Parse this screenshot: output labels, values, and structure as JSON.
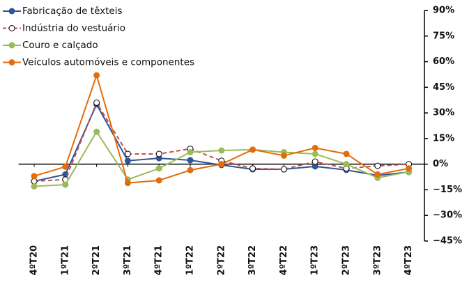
{
  "chart_data": {
    "type": "line",
    "categories": [
      "4ºT20",
      "1ºT21",
      "2ºT21",
      "3ºT21",
      "4ºT21",
      "1ºT22",
      "2ºT22",
      "3ºT22",
      "4ºT22",
      "1ºT23",
      "2ºT23",
      "3ºT23",
      "4ºT23"
    ],
    "series": [
      {
        "name": "Fabricação de têxteis",
        "color": "#2f5597",
        "values": [
          -10,
          -6,
          35,
          2,
          3.5,
          2.3,
          -0.5,
          -3,
          -3,
          -1.3,
          -3.4,
          -6.6,
          -4.6
        ]
      },
      {
        "name": "Indústria do vestuário",
        "color": "#c0504d",
        "values": [
          -10,
          -9,
          36,
          6,
          6,
          9,
          2,
          -2.5,
          -3,
          1.5,
          -2.5,
          -1,
          0
        ]
      },
      {
        "name": "Couro e calçado",
        "color": "#9bbb59",
        "values": [
          -13,
          -12,
          19,
          -9,
          -2.5,
          7,
          8,
          8.5,
          7,
          6,
          0,
          -8,
          -4.5
        ]
      },
      {
        "name": "Veículos automóveis e componentes",
        "color": "#e46c0a",
        "values": [
          -7,
          -1.5,
          52,
          -11,
          -9.5,
          -3.5,
          0,
          8.5,
          5,
          9.5,
          6,
          -6,
          -2.5
        ]
      }
    ],
    "ylim": [
      -45,
      90
    ],
    "yticks": [
      {
        "value": 90,
        "label": "90%"
      },
      {
        "value": 75,
        "label": "75%"
      },
      {
        "value": 60,
        "label": "60%"
      },
      {
        "value": 45,
        "label": "45%"
      },
      {
        "value": 30,
        "label": "30%"
      },
      {
        "value": 15,
        "label": "15%"
      },
      {
        "value": 0,
        "label": "0%"
      },
      {
        "value": -15,
        "label": "−15%"
      },
      {
        "value": -30,
        "label": "−30%"
      },
      {
        "value": -45,
        "label": "−45%"
      }
    ],
    "legend": "top-left"
  }
}
